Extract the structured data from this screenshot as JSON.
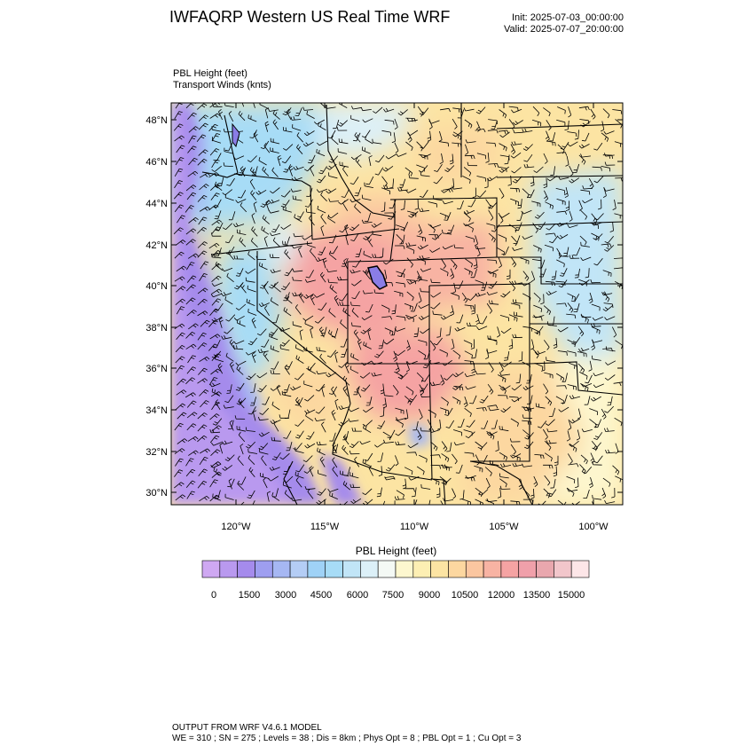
{
  "title": "IWFAQRP Western US Real Time WRF",
  "init": "Init: 2025-07-03_00:00:00",
  "valid": "Valid: 2025-07-07_20:00:00",
  "field_label": "PBL Height   (feet)",
  "vector_label": "Transport Winds   (knts)",
  "colorbar": {
    "title": "PBL Height  (feet)",
    "labels": [
      "0",
      "1500",
      "3000",
      "4500",
      "6000",
      "7500",
      "9000",
      "10500",
      "12000",
      "13500",
      "15000"
    ],
    "colors": [
      "#cfa8f2",
      "#b999ef",
      "#a58bec",
      "#9e9ef0",
      "#a6b7f3",
      "#b4cdf5",
      "#9fd2f6",
      "#a7dcf6",
      "#c1e5f7",
      "#dcf0f8",
      "#f4f9f5",
      "#fdf7cf",
      "#fdefb3",
      "#fce4a3",
      "#fcd7a0",
      "#fbc6a0",
      "#f8b3a3",
      "#f5a3a3",
      "#f0a0aa",
      "#e9a7ae",
      "#f2c6cb",
      "#fde6e8"
    ]
  },
  "map": {
    "lat_labels": [
      "48°N",
      "46°N",
      "44°N",
      "42°N",
      "40°N",
      "38°N",
      "36°N",
      "34°N",
      "32°N",
      "30°N"
    ],
    "lon_labels": [
      "120°W",
      "115°W",
      "110°W",
      "105°W",
      "100°W"
    ]
  },
  "footer": {
    "line1": "OUTPUT FROM WRF V4.6.1 MODEL",
    "line2": "WE = 310 ; SN = 275 ; Levels = 38 ; Dis = 8km ; Phys Opt = 8 ; PBL Opt = 1 ; Cu Opt = 3"
  }
}
